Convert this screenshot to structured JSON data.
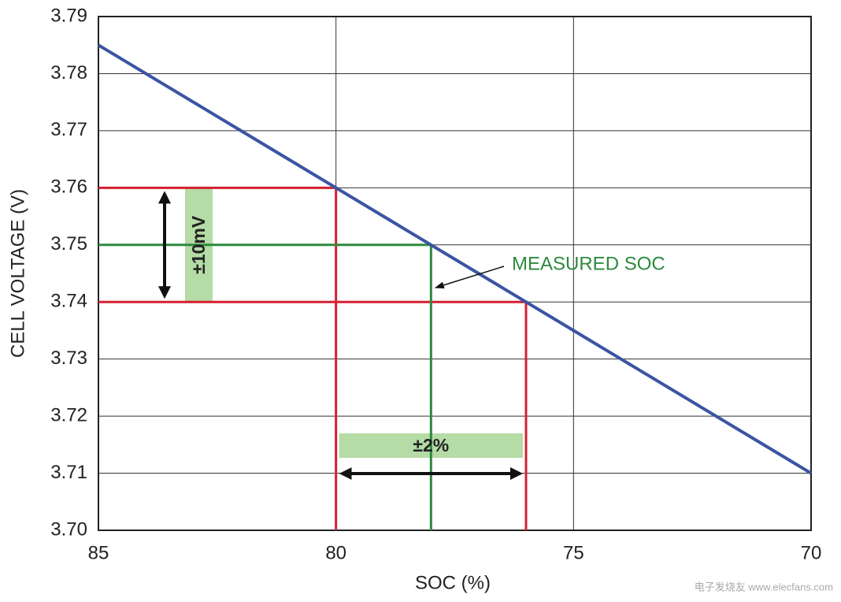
{
  "chart_data": {
    "type": "line",
    "x": [
      85,
      70
    ],
    "series": [
      {
        "color": "#3b54a3",
        "values": [
          3.785,
          3.71
        ]
      }
    ],
    "xlim": [
      85,
      70
    ],
    "xticks": [
      85,
      80,
      75,
      70
    ],
    "ylim": [
      3.7,
      3.79
    ],
    "yticks": [
      {
        "value": 3.7,
        "label": "3.70"
      },
      3.71,
      3.72,
      3.73,
      3.74,
      3.75,
      3.76,
      3.77,
      3.78,
      3.79
    ],
    "xlabel": "SOC (%)",
    "ylabel": "CELL VOLTAGE (V)",
    "grid": true,
    "reference_lines": [
      {
        "x": 80,
        "y": 3.76,
        "color": "#d42030"
      },
      {
        "x": 76,
        "y": 3.74,
        "color": "#d42030"
      },
      {
        "x": 78,
        "y": 3.75,
        "color": "#2d8a3e"
      }
    ],
    "annotations": [
      {
        "text": "±10mV"
      },
      {
        "text": "±2%"
      },
      {
        "text": "MEASURED SOC"
      }
    ],
    "watermark": "电子发烧友 www.elecfans.com"
  }
}
